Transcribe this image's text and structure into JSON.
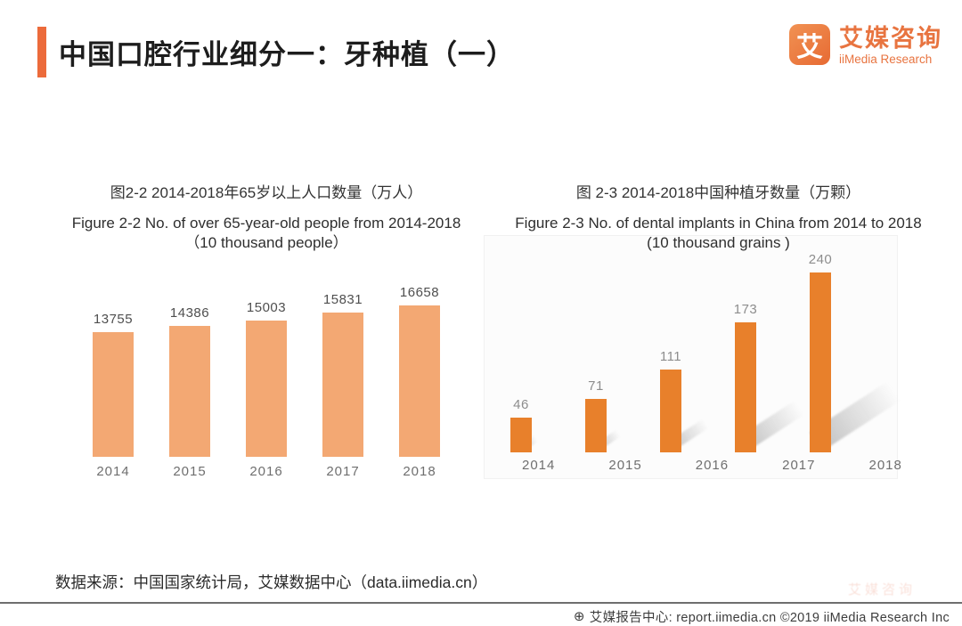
{
  "header": {
    "title": "中国口腔行业细分一：牙种植（一）",
    "logo": {
      "mark_glyph": "艾",
      "name_zh": "艾媒咨询",
      "name_en": "iiMedia Research"
    }
  },
  "colors": {
    "accent_orange": "#ec6b3b",
    "left_bar": "#f3a873",
    "right_bar": "#e8802b",
    "brand_orange": "#e87440"
  },
  "chart_data": [
    {
      "type": "bar",
      "title_zh": "图2-2 2014-2018年65岁以上人口数量（万人）",
      "title_en_line1": "Figure 2-2  No. of over 65-year-old people from 2014-2018",
      "title_en_line2": "（10 thousand people）",
      "categories": [
        "2014",
        "2015",
        "2016",
        "2017",
        "2018"
      ],
      "values": [
        13755,
        14386,
        15003,
        15831,
        16658
      ],
      "ylim": [
        0,
        17000
      ],
      "bar_color": "#f3a873",
      "value_label_color": "#4f4f4f",
      "grid": false,
      "legend": false,
      "shadow": false,
      "data_labels": true
    },
    {
      "type": "bar",
      "title_zh": "图 2-3 2014-2018中国种植牙数量（万颗）",
      "title_en_line1": "Figure 2-3 No. of dental implants in China from 2014 to 2018",
      "title_en_line2": "(10 thousand grains )",
      "categories": [
        "2014",
        "2015",
        "2016",
        "2017",
        "2018"
      ],
      "values": [
        46,
        71,
        111,
        173,
        240
      ],
      "ylim": [
        0,
        250
      ],
      "bar_color": "#e8802b",
      "value_label_color": "#8d8d8d",
      "grid": false,
      "legend": false,
      "shadow": true,
      "data_labels": true
    }
  ],
  "source_note": "数据来源：中国国家统计局，艾媒数据中心（data.iimedia.cn）",
  "watermark_text": "艾媒咨询",
  "footer": {
    "icon_glyph": "⊕",
    "text": "艾媒报告中心: report.iimedia.cn  ©2019  iiMedia Research Inc"
  }
}
